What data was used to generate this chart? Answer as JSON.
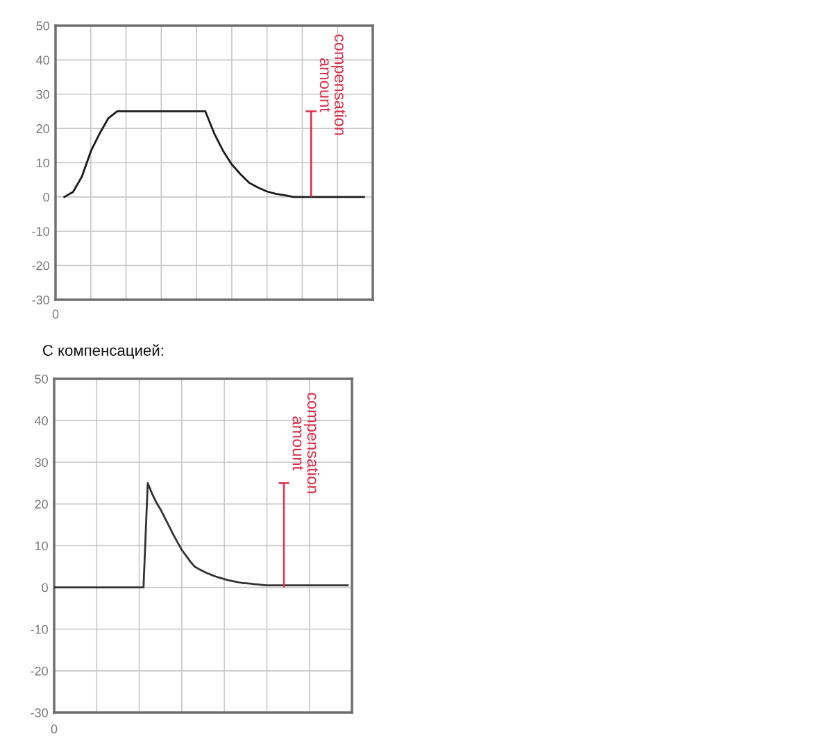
{
  "chart_data": [
    {
      "type": "line",
      "categories": [
        null,
        null,
        null,
        null,
        null,
        null,
        null,
        null,
        null,
        null,
        null,
        null,
        null,
        null,
        null,
        null,
        null,
        null,
        null,
        null,
        null,
        null,
        null,
        null,
        null,
        null,
        null,
        null,
        null,
        null,
        null,
        null,
        null,
        null,
        null,
        null,
        null
      ],
      "ylim": [
        -30,
        50
      ],
      "yticks": [
        -30,
        -20,
        -10,
        0,
        10,
        20,
        30,
        40,
        50
      ],
      "grid": true,
      "marker": "none",
      "line_style": "solid",
      "series": [
        {
          "color": "#1a1a1a",
          "values": [
            null,
            0,
            1.5,
            6,
            13.3,
            18.5,
            23,
            25,
            25,
            25,
            25,
            25,
            25,
            25,
            25,
            25,
            25,
            25,
            18.6,
            13.5,
            9.5,
            6.6,
            4.1,
            2.7,
            1.6,
            0.9,
            0.5,
            0,
            0,
            0,
            0,
            0,
            0,
            0,
            0,
            0,
            null
          ]
        },
        {
          "type": "bar",
          "color": "#d9304a",
          "values": [
            null,
            null,
            null,
            null,
            null,
            null,
            null,
            null,
            null,
            null,
            null,
            null,
            null,
            null,
            null,
            null,
            null,
            null,
            null,
            null,
            null,
            null,
            null,
            null,
            null,
            null,
            null,
            null,
            null,
            25,
            null,
            null,
            null,
            null,
            null,
            null,
            null
          ]
        }
      ],
      "annotations": [
        "compensation\namount",
        "0"
      ]
    },
    {
      "type": "line",
      "title": "С компенсацией:",
      "categories": [
        null,
        null,
        null,
        null,
        null,
        null,
        null,
        null,
        null,
        null,
        null,
        null,
        null,
        null,
        null,
        null,
        null,
        null,
        null,
        null,
        null,
        null,
        null,
        null,
        null,
        null,
        null,
        null,
        null,
        null,
        null,
        null,
        null,
        null,
        null,
        null,
        null,
        null,
        null,
        null,
        null,
        null,
        null,
        null,
        null,
        null,
        null,
        null,
        null,
        null,
        null,
        null,
        null,
        null,
        null,
        null,
        null,
        null,
        null,
        null,
        null,
        null,
        null,
        null,
        null,
        null,
        null,
        null,
        null,
        null,
        null
      ],
      "ylim": [
        -30,
        50
      ],
      "yticks": [
        -30,
        -20,
        -10,
        0,
        10,
        20,
        30,
        40,
        50
      ],
      "grid": true,
      "marker": "none",
      "line_style": "solid",
      "series": [
        {
          "color": "#333333",
          "values": [
            0,
            0,
            0,
            0,
            0,
            0,
            0,
            0,
            0,
            0,
            0,
            0,
            0,
            0,
            0,
            0,
            0,
            0,
            0,
            0,
            0,
            0,
            25,
            22.5,
            20.4,
            18.7,
            16.7,
            14.7,
            12.7,
            10.8,
            9.0,
            7.6,
            6.2,
            5.0,
            4.4,
            3.9,
            3.4,
            3.0,
            2.6,
            2.3,
            2.0,
            1.7,
            1.5,
            1.3,
            1.1,
            1.0,
            0.9,
            0.8,
            0.7,
            0.6,
            0.5,
            0.5,
            0.5,
            0.5,
            0.5,
            0.5,
            0.5,
            0.5,
            0.5,
            0.5,
            0.5,
            0.5,
            0.5,
            0.5,
            0.5,
            0.5,
            0.5,
            0.5,
            0.5,
            0.5,
            null
          ]
        },
        {
          "type": "bar",
          "color": "#d9304a",
          "values": [
            null,
            null,
            null,
            null,
            null,
            null,
            null,
            null,
            null,
            null,
            null,
            null,
            null,
            null,
            null,
            null,
            null,
            null,
            null,
            null,
            null,
            null,
            null,
            null,
            null,
            null,
            null,
            null,
            null,
            null,
            null,
            null,
            null,
            null,
            null,
            null,
            null,
            null,
            null,
            null,
            null,
            null,
            null,
            null,
            null,
            null,
            null,
            null,
            null,
            null,
            null,
            null,
            null,
            null,
            25,
            null,
            null,
            null,
            null,
            null,
            null,
            null,
            null,
            null,
            null,
            null,
            null,
            null,
            null,
            null,
            null
          ]
        }
      ],
      "annotations": [
        "compensation\namount",
        "0"
      ]
    }
  ]
}
